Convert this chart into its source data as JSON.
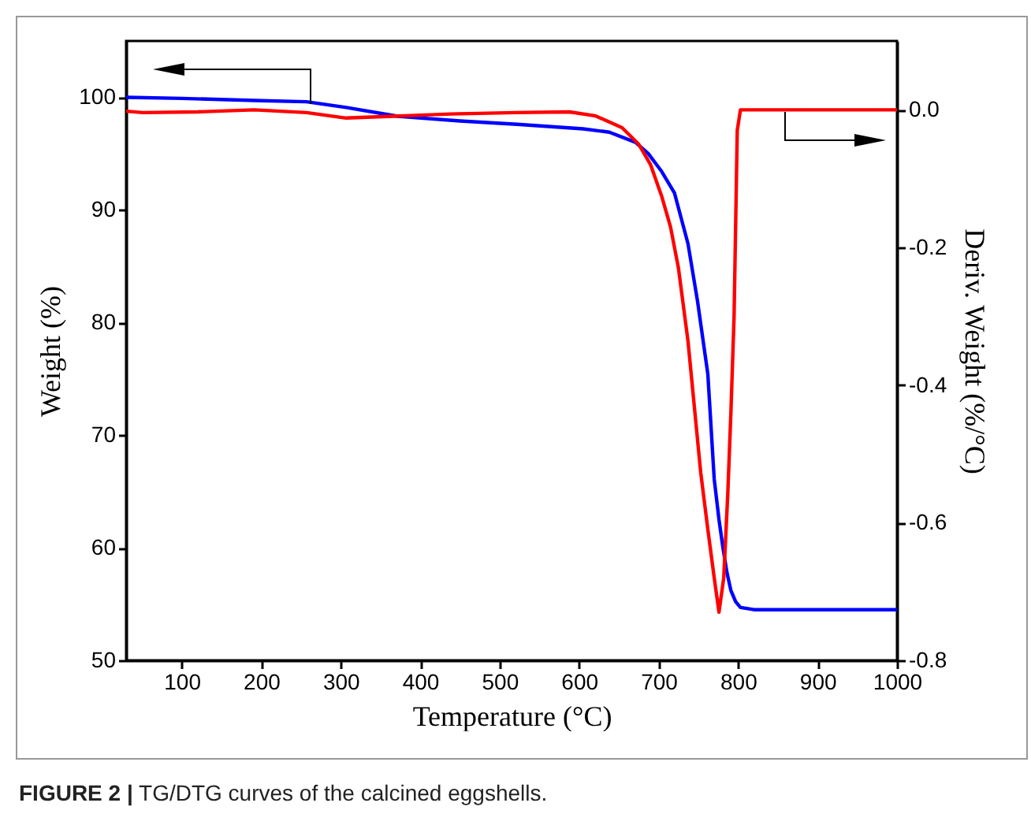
{
  "chart_data": {
    "type": "line",
    "xlabel": "Temperature (°C)",
    "ylabel": "Weight (%)",
    "y2label": "Deriv. Weight (%/°C)",
    "annotations": [
      "FIGURE 2 | TG/DTG curves of the calcined eggshells."
    ],
    "xlim": [
      30,
      1000
    ],
    "xticks": [
      100,
      200,
      300,
      400,
      500,
      600,
      700,
      800,
      900,
      1000
    ],
    "ylim": [
      50,
      105
    ],
    "yticks": [
      50,
      60,
      70,
      80,
      90,
      100
    ],
    "y2lim": [
      -0.8,
      0.1
    ],
    "y2ticks": [
      -0.8,
      -0.6,
      -0.4,
      -0.2,
      {
        "value": 0,
        "label": "0.0"
      }
    ],
    "grid": false,
    "line_style": "solid",
    "marker": "none",
    "series": [
      {
        "color": "#0000ff",
        "x": [
          30,
          100,
          200,
          257,
          307,
          373,
          450,
          522,
          605,
          638,
          671,
          687,
          704,
          720,
          737,
          749,
          762,
          770,
          776,
          781,
          786,
          791,
          797,
          803,
          820,
          900,
          1000
        ],
        "values": [
          100.0,
          99.9,
          99.7,
          99.6,
          99.1,
          98.3,
          97.9,
          97.6,
          97.2,
          96.9,
          96.0,
          95.0,
          93.4,
          91.5,
          87.0,
          81.9,
          75.4,
          66.1,
          62.5,
          60.0,
          57.8,
          56.2,
          55.2,
          54.7,
          54.5,
          54.5,
          54.5
        ]
      },
      {
        "color": "#ff0000",
        "axis": "y2",
        "x": [
          30,
          51,
          120,
          191,
          257,
          307,
          373,
          439,
          520,
          588,
          621,
          654,
          675,
          690,
          704,
          715,
          725,
          737,
          753,
          762,
          770,
          776,
          782,
          787,
          791,
          795,
          799,
          803,
          850,
          1000
        ],
        "values": [
          -0.002,
          -0.004,
          -0.003,
          0.0,
          -0.004,
          -0.012,
          -0.009,
          -0.006,
          -0.004,
          -0.003,
          -0.009,
          -0.026,
          -0.05,
          -0.08,
          -0.126,
          -0.17,
          -0.23,
          -0.336,
          -0.527,
          -0.61,
          -0.68,
          -0.73,
          -0.68,
          -0.56,
          -0.44,
          -0.3,
          -0.03,
          0.0,
          0.0,
          0.0
        ]
      }
    ]
  }
}
